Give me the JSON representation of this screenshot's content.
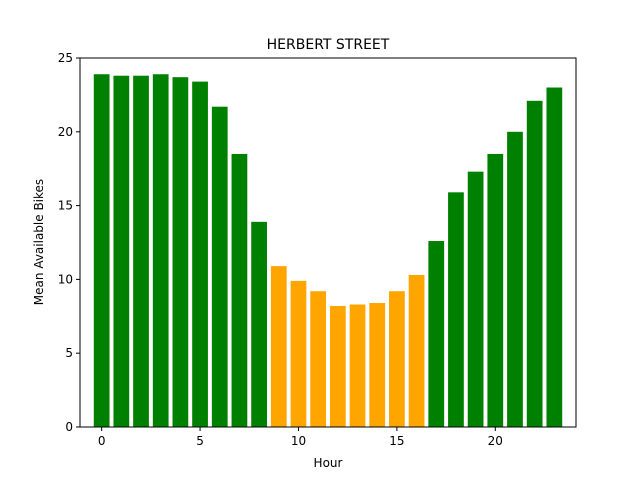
{
  "chart_data": {
    "type": "bar",
    "title": "HERBERT STREET",
    "xlabel": "Hour",
    "ylabel": "Mean Available Bikes",
    "x": [
      0,
      1,
      2,
      3,
      4,
      5,
      6,
      7,
      8,
      9,
      10,
      11,
      12,
      13,
      14,
      15,
      16,
      17,
      18,
      19,
      20,
      21,
      22,
      23
    ],
    "values": [
      23.9,
      23.8,
      23.8,
      23.9,
      23.7,
      23.4,
      21.7,
      18.5,
      13.9,
      10.9,
      9.9,
      9.2,
      8.2,
      8.3,
      8.4,
      9.2,
      10.3,
      12.6,
      15.9,
      17.3,
      18.5,
      20.0,
      22.1,
      23.0
    ],
    "colors": [
      "green",
      "green",
      "green",
      "green",
      "green",
      "green",
      "green",
      "green",
      "green",
      "orange",
      "orange",
      "orange",
      "orange",
      "orange",
      "orange",
      "orange",
      "orange",
      "green",
      "green",
      "green",
      "green",
      "green",
      "green",
      "green"
    ],
    "palette": {
      "green": "#008000",
      "orange": "#ffa500"
    },
    "xlim": [
      -1.1,
      24.1
    ],
    "ylim": [
      0,
      25
    ],
    "xticks": [
      0,
      5,
      10,
      15,
      20
    ],
    "yticks": [
      0,
      5,
      10,
      15,
      20,
      25
    ],
    "grid": false,
    "legend": "none"
  }
}
